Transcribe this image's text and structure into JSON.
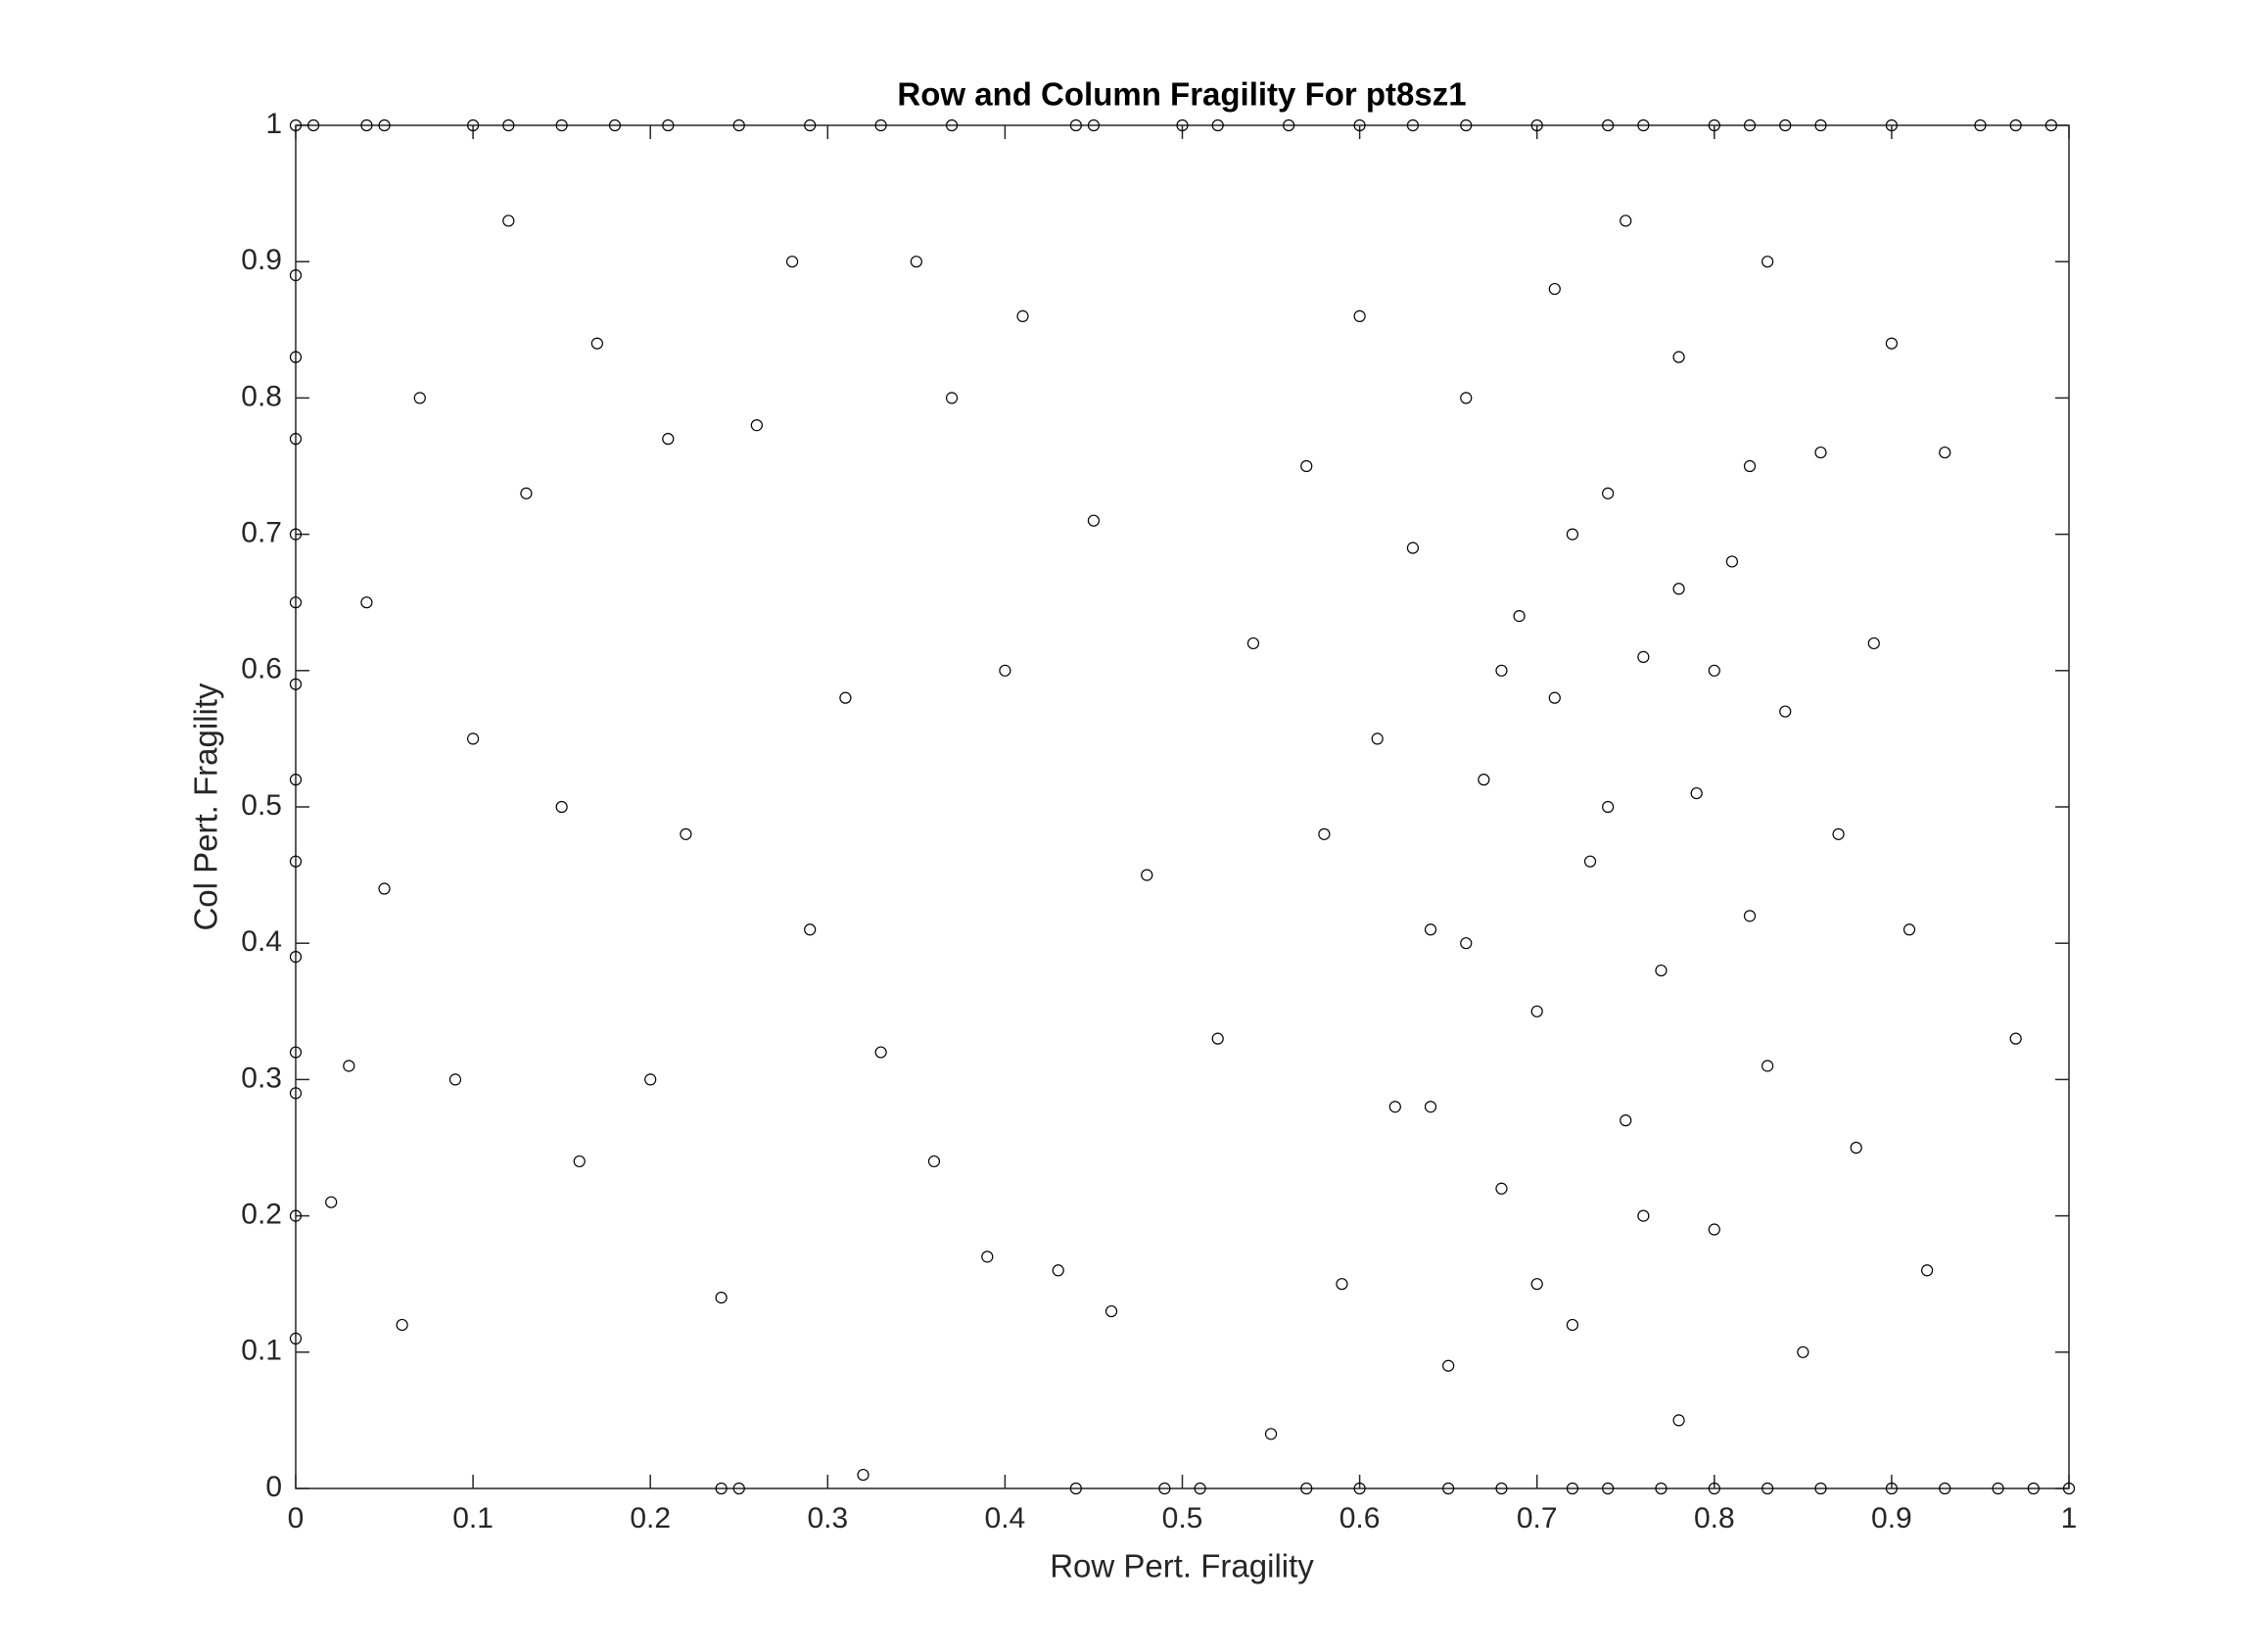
{
  "chart_data": {
    "type": "scatter",
    "title": "Row and Column Fragility For pt8sz1",
    "x_label": "Row Pert. Fragility",
    "y_label": "Col Pert. Fragility",
    "xlim": [
      0,
      1
    ],
    "ylim": [
      0,
      1
    ],
    "xticks": [
      0,
      0.1,
      0.2,
      0.3,
      0.4,
      0.5,
      0.6,
      0.7,
      0.8,
      0.9,
      1
    ],
    "yticks": [
      0,
      0.1,
      0.2,
      0.3,
      0.4,
      0.5,
      0.6,
      0.7,
      0.8,
      0.9,
      1
    ],
    "grid": false,
    "color": "#000000",
    "series": [
      {
        "x": [
          0,
          0.01,
          0.04,
          0.05,
          0.1,
          0.12,
          0.15,
          0.18,
          0.21,
          0.25,
          0.29,
          0.33,
          0.37,
          0.44,
          0.45,
          0.5,
          0.52,
          0.56,
          0.6,
          0.63,
          0.66,
          0.7,
          0.74,
          0.76,
          0.8,
          0.82,
          0.84,
          0.86,
          0.9,
          0.95,
          0.97,
          0.99,
          0.24,
          0.25,
          0.44,
          0.49,
          0.51,
          0.57,
          0.6,
          0.65,
          0.68,
          0.72,
          0.74,
          0.77,
          0.8,
          0.83,
          0.86,
          0.9,
          0.93,
          0.96,
          0.98,
          1,
          0,
          0,
          0,
          0,
          0,
          0,
          0,
          0,
          0,
          0,
          0,
          0,
          0,
          0.02,
          0.03,
          0.04,
          0.05,
          0.06,
          0.07,
          0.09,
          0.1,
          0.12,
          0.13,
          0.15,
          0.16,
          0.17,
          0.2,
          0.21,
          0.22,
          0.24,
          0.26,
          0.28,
          0.29,
          0.31,
          0.32,
          0.33,
          0.35,
          0.36,
          0.37,
          0.39,
          0.4,
          0.41,
          0.43,
          0.45,
          0.46,
          0.48,
          0.52,
          0.54,
          0.55,
          0.57,
          0.58,
          0.59,
          0.6,
          0.61,
          0.62,
          0.63,
          0.64,
          0.65,
          0.66,
          0.67,
          0.68,
          0.69,
          0.7,
          0.71,
          0.71,
          0.72,
          0.73,
          0.74,
          0.75,
          0.75,
          0.76,
          0.77,
          0.78,
          0.78,
          0.79,
          0.8,
          0.81,
          0.82,
          0.83,
          0.83,
          0.84,
          0.85,
          0.86,
          0.87,
          0.88,
          0.89,
          0.9,
          0.91,
          0.92,
          0.93,
          0.97,
          0.66,
          0.68,
          0.72,
          0.74,
          0.76,
          0.8,
          0.82,
          0.78,
          0.7,
          0.64
        ],
        "values": [
          1,
          1,
          1,
          1,
          1,
          1,
          1,
          1,
          1,
          1,
          1,
          1,
          1,
          1,
          1,
          1,
          1,
          1,
          1,
          1,
          1,
          1,
          1,
          1,
          1,
          1,
          1,
          1,
          1,
          1,
          1,
          1,
          0,
          0,
          0,
          0,
          0,
          0,
          0,
          0,
          0,
          0,
          0,
          0,
          0,
          0,
          0,
          0,
          0,
          0,
          0,
          0,
          0.11,
          0.2,
          0.29,
          0.32,
          0.39,
          0.46,
          0.52,
          0.59,
          0.65,
          0.7,
          0.77,
          0.83,
          0.89,
          0.21,
          0.31,
          0.65,
          0.44,
          0.12,
          0.8,
          0.3,
          0.55,
          0.93,
          0.73,
          0.5,
          0.24,
          0.84,
          0.3,
          0.77,
          0.48,
          0.14,
          0.78,
          0.9,
          0.41,
          0.58,
          0.01,
          0.32,
          0.9,
          0.24,
          0.8,
          0.17,
          0.6,
          0.86,
          0.16,
          0.71,
          0.13,
          0.45,
          0.33,
          0.62,
          0.04,
          0.75,
          0.48,
          0.15,
          0.86,
          0.55,
          0.28,
          0.69,
          0.41,
          0.09,
          0.8,
          0.52,
          0.22,
          0.64,
          0.35,
          0.88,
          0.58,
          0.12,
          0.46,
          0.73,
          0.27,
          0.93,
          0.61,
          0.38,
          0.05,
          0.83,
          0.51,
          0.19,
          0.68,
          0.42,
          0.9,
          0.31,
          0.57,
          0.1,
          0.76,
          0.48,
          0.25,
          0.62,
          0.84,
          0.41,
          0.16,
          0.76,
          0.33,
          0.4,
          0.6,
          0.7,
          0.5,
          0.2,
          0.6,
          0.75,
          0.66,
          0.15,
          0.28
        ]
      }
    ]
  }
}
